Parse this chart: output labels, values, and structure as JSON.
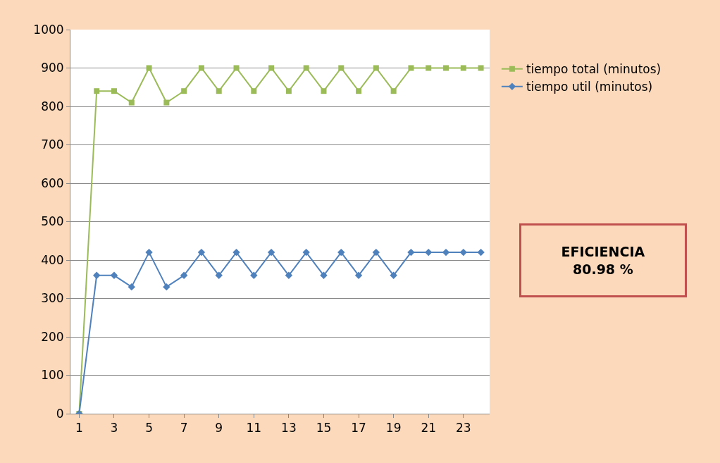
{
  "chart_data": {
    "type": "line",
    "x": [
      1,
      2,
      3,
      4,
      5,
      6,
      7,
      8,
      9,
      10,
      11,
      12,
      13,
      14,
      15,
      16,
      17,
      18,
      19,
      20,
      21,
      22,
      23,
      24
    ],
    "series": [
      {
        "name": "tiempo total (minutos)",
        "color": "#9bbb59",
        "marker": "square",
        "values": [
          0,
          840,
          840,
          810,
          900,
          810,
          840,
          900,
          840,
          900,
          840,
          900,
          840,
          900,
          840,
          900,
          840,
          900,
          840,
          900,
          900,
          900,
          900,
          900
        ]
      },
      {
        "name": "tiempo util (minutos)",
        "color": "#4f81bd",
        "marker": "diamond",
        "values": [
          0,
          360,
          360,
          330,
          420,
          330,
          360,
          420,
          360,
          420,
          360,
          420,
          360,
          420,
          360,
          420,
          360,
          420,
          360,
          420,
          420,
          420,
          420,
          420
        ]
      }
    ],
    "xlim": [
      0.5,
      24.5
    ],
    "xticks": [
      1,
      3,
      5,
      7,
      9,
      11,
      13,
      15,
      17,
      19,
      21,
      23
    ],
    "ylim": [
      0,
      1000
    ],
    "yticks": [
      0,
      100,
      200,
      300,
      400,
      500,
      600,
      700,
      800,
      900,
      1000
    ],
    "grid": "y",
    "legend": "right",
    "line_style": "solid",
    "annotations": [
      "EFICIENCIA\n80.98 %"
    ]
  }
}
